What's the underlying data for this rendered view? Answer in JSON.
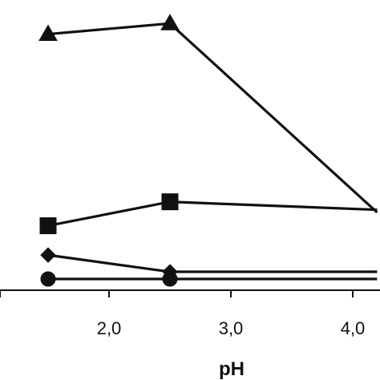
{
  "chart_data": {
    "type": "line",
    "xlabel": "pH",
    "ylabel": "",
    "xlim": [
      1.0,
      4.2
    ],
    "ylim": [
      0,
      100
    ],
    "x_ticks": [
      {
        "value": 2.0,
        "label": "2,0"
      },
      {
        "value": 3.0,
        "label": "3,0"
      },
      {
        "value": 4.0,
        "label": "4,0"
      }
    ],
    "series": [
      {
        "marker": "triangle",
        "points": [
          [
            1.5,
            92
          ],
          [
            2.5,
            96
          ],
          [
            4.2,
            25
          ]
        ]
      },
      {
        "marker": "square",
        "points": [
          [
            1.5,
            20
          ],
          [
            2.5,
            29
          ],
          [
            4.2,
            26
          ]
        ]
      },
      {
        "marker": "diamond",
        "points": [
          [
            1.5,
            9
          ],
          [
            2.5,
            2.7
          ],
          [
            4.2,
            2.7
          ]
        ]
      },
      {
        "marker": "circle",
        "points": [
          [
            1.5,
            0
          ],
          [
            2.5,
            0
          ],
          [
            4.2,
            0
          ]
        ]
      }
    ],
    "grid": false,
    "legend": "none"
  }
}
